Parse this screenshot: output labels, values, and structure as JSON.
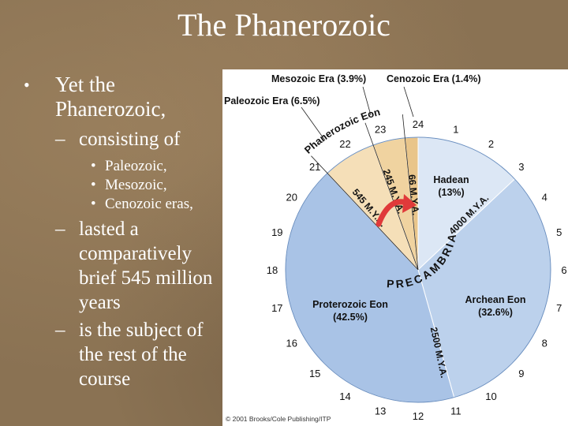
{
  "slide": {
    "title": "The Phanerozoic",
    "bullet_main": "Yet the Phanerozoic,",
    "sub1": "consisting of",
    "eras": [
      "Paleozoic,",
      "Mesozoic,",
      "Cenozoic eras,"
    ],
    "sub2": "lasted a comparatively brief 545 million years",
    "sub3": "is the subject of the rest of the course",
    "bullet_marker": "•",
    "dash_marker": "–"
  },
  "figure": {
    "era_labels": {
      "mesozoic": "Mesozoic Era (3.9%)",
      "cenozoic": "Cenozoic Era (1.4%)",
      "paleozoic": "Paleozoic Era (6.5%)"
    },
    "eons": {
      "hadean_name": "Hadean",
      "hadean_pct": "(13%)",
      "archean_name": "Archean Eon",
      "archean_pct": "(32.6%)",
      "proterozoic_name": "Proterozoic Eon",
      "proterozoic_pct": "(42.5%)",
      "phanerozoic_arc": "Phanerozoic Eon",
      "precambrian_arc": "PRECAMBRIAN"
    },
    "boundaries": {
      "b66": "66 M.Y.A.",
      "b245": "245 M.Y.A.",
      "b545": "545 M.Y.A.",
      "b2500": "2500 M.Y.A.",
      "b4000": "4000 M.Y.A."
    },
    "clock_numbers": [
      "1",
      "2",
      "3",
      "4",
      "5",
      "6",
      "7",
      "8",
      "9",
      "10",
      "11",
      "12",
      "13",
      "14",
      "15",
      "16",
      "17",
      "18",
      "19",
      "20",
      "21",
      "22",
      "23",
      "24"
    ],
    "copyright": "© 2001 Brooks/Cole Publishing/ITP",
    "colors": {
      "proterozoic": "#a9c3e6",
      "archean": "#bcd1ec",
      "hadean": "#dce7f5",
      "paleozoic": "#f5dfb8",
      "mesozoic": "#f0d3a0",
      "cenozoic": "#e9c58a",
      "arrow": "#e03a3a"
    }
  }
}
